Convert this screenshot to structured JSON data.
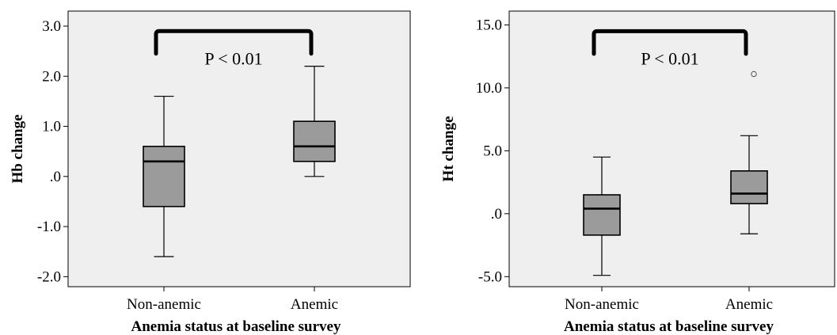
{
  "chart_data": [
    {
      "type": "box",
      "xlabel": "Anemia status at baseline survey",
      "ylabel": "Hb change",
      "ylim": [
        -2.2,
        3.3
      ],
      "yticks": [
        3.0,
        2.0,
        1.0,
        0.0,
        -1.0,
        -2.0
      ],
      "ytick_labels": [
        "3.0",
        "2.0",
        "1.0",
        ".0",
        "-1.0",
        "-2.0"
      ],
      "categories": [
        "Non-anemic",
        "Anemic"
      ],
      "boxes": [
        {
          "category": "Non-anemic",
          "whisker_low": -1.6,
          "q1": -0.6,
          "median": 0.3,
          "q3": 0.6,
          "whisker_high": 1.6,
          "outliers": []
        },
        {
          "category": "Anemic",
          "whisker_low": 0.0,
          "q1": 0.3,
          "median": 0.6,
          "q3": 1.1,
          "whisker_high": 2.2,
          "outliers": []
        }
      ],
      "annotation": "P < 0.01",
      "bracket_level": 2.9,
      "bracket_drop": 2.45,
      "background": "#efefef",
      "box_fill": "#9b9b9b",
      "grid": false
    },
    {
      "type": "box",
      "xlabel": "Anemia status at baseline survey",
      "ylabel": "Ht change",
      "ylim": [
        -5.8,
        16.1
      ],
      "yticks": [
        15.0,
        10.0,
        5.0,
        0.0,
        -5.0
      ],
      "ytick_labels": [
        "15.0",
        "10.0",
        "5.0",
        ".0",
        "-5.0"
      ],
      "categories": [
        "Non-anemic",
        "Anemic"
      ],
      "boxes": [
        {
          "category": "Non-anemic",
          "whisker_low": -4.9,
          "q1": -1.7,
          "median": 0.4,
          "q3": 1.5,
          "whisker_high": 4.5,
          "outliers": []
        },
        {
          "category": "Anemic",
          "whisker_low": -1.6,
          "q1": 0.8,
          "median": 1.6,
          "q3": 3.4,
          "whisker_high": 6.2,
          "outliers": [
            11.1
          ]
        }
      ],
      "annotation": "P < 0.01",
      "bracket_level": 14.5,
      "bracket_drop": 12.7,
      "background": "#efefef",
      "box_fill": "#9b9b9b",
      "grid": false
    }
  ]
}
